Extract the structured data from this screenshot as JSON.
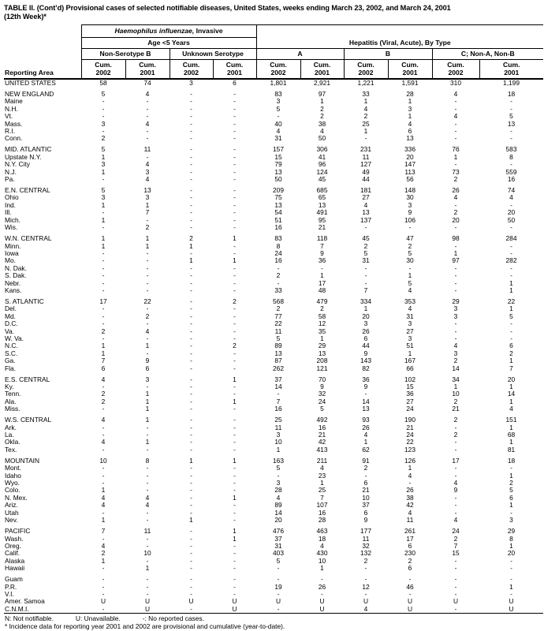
{
  "title": {
    "line1": "TABLE II. (Cont’d) Provisional cases of selected notifiable diseases, United States, weeks ending March 23, 2002, and March 24, 2001",
    "line2": "(12th Week)*"
  },
  "header": {
    "reporting_area": "Reporting Area",
    "group1_italic": "Haemophilus influenzae,",
    "group1_rest": " Invasive",
    "group1_sub": "Age <5 Years",
    "sub_nonserotype": "Non-Serotype B",
    "sub_unknown": "Unknown Serotype",
    "group2": "Hepatitis (Viral, Acute), By Type",
    "sub_a": "A",
    "sub_b": "B",
    "sub_c": "C; Non-A, Non-B",
    "cum_label": "Cum.",
    "years": [
      "2002",
      "2001",
      "2002",
      "2001",
      "2002",
      "2001",
      "2002",
      "2001",
      "2002",
      "2001"
    ]
  },
  "rows": [
    {
      "area": "UNITED STATES",
      "v": [
        "58",
        "74",
        "3",
        "6",
        "1,801",
        "2,921",
        "1,221",
        "1,591",
        "310",
        "1,199"
      ]
    },
    {
      "area": "NEW ENGLAND",
      "gap": true,
      "v": [
        "5",
        "4",
        "-",
        "-",
        "83",
        "97",
        "33",
        "28",
        "4",
        "18"
      ]
    },
    {
      "area": "Maine",
      "v": [
        "-",
        "-",
        "-",
        "-",
        "3",
        "1",
        "1",
        "1",
        "-",
        "-"
      ]
    },
    {
      "area": "N.H.",
      "v": [
        "-",
        "-",
        "-",
        "-",
        "5",
        "2",
        "4",
        "3",
        "-",
        "-"
      ]
    },
    {
      "area": "Vt.",
      "v": [
        "-",
        "-",
        "-",
        "-",
        "-",
        "2",
        "2",
        "1",
        "4",
        "5"
      ]
    },
    {
      "area": "Mass.",
      "v": [
        "3",
        "4",
        "-",
        "-",
        "40",
        "38",
        "25",
        "4",
        "-",
        "13"
      ]
    },
    {
      "area": "R.I.",
      "v": [
        "-",
        "-",
        "-",
        "-",
        "4",
        "4",
        "1",
        "6",
        "-",
        "-"
      ]
    },
    {
      "area": "Conn.",
      "v": [
        "2",
        "-",
        "-",
        "-",
        "31",
        "50",
        "-",
        "13",
        "-",
        "-"
      ]
    },
    {
      "area": "MID. ATLANTIC",
      "gap": true,
      "v": [
        "5",
        "11",
        "-",
        "-",
        "157",
        "306",
        "231",
        "336",
        "76",
        "583"
      ]
    },
    {
      "area": "Upstate N.Y.",
      "v": [
        "1",
        "-",
        "-",
        "-",
        "15",
        "41",
        "11",
        "20",
        "1",
        "8"
      ]
    },
    {
      "area": "N.Y. City",
      "v": [
        "3",
        "4",
        "-",
        "-",
        "79",
        "96",
        "127",
        "147",
        "-",
        "-"
      ]
    },
    {
      "area": "N.J.",
      "v": [
        "1",
        "3",
        "-",
        "-",
        "13",
        "124",
        "49",
        "113",
        "73",
        "559"
      ]
    },
    {
      "area": "Pa.",
      "v": [
        "-",
        "4",
        "-",
        "-",
        "50",
        "45",
        "44",
        "56",
        "2",
        "16"
      ]
    },
    {
      "area": "E.N. CENTRAL",
      "gap": true,
      "v": [
        "5",
        "13",
        "-",
        "-",
        "209",
        "685",
        "181",
        "148",
        "26",
        "74"
      ]
    },
    {
      "area": "Ohio",
      "v": [
        "3",
        "3",
        "-",
        "-",
        "75",
        "65",
        "27",
        "30",
        "4",
        "4"
      ]
    },
    {
      "area": "Ind.",
      "v": [
        "1",
        "1",
        "-",
        "-",
        "13",
        "13",
        "4",
        "3",
        "-",
        "-"
      ]
    },
    {
      "area": "Ill.",
      "v": [
        "-",
        "7",
        "-",
        "-",
        "54",
        "491",
        "13",
        "9",
        "2",
        "20"
      ]
    },
    {
      "area": "Mich.",
      "v": [
        "1",
        "-",
        "-",
        "-",
        "51",
        "95",
        "137",
        "106",
        "20",
        "50"
      ]
    },
    {
      "area": "Wis.",
      "v": [
        "-",
        "2",
        "-",
        "-",
        "16",
        "21",
        "-",
        "-",
        "-",
        "-"
      ]
    },
    {
      "area": "W.N. CENTRAL",
      "gap": true,
      "v": [
        "1",
        "1",
        "2",
        "1",
        "83",
        "118",
        "45",
        "47",
        "98",
        "284"
      ]
    },
    {
      "area": "Minn.",
      "v": [
        "1",
        "1",
        "1",
        "-",
        "8",
        "7",
        "2",
        "2",
        "-",
        "-"
      ]
    },
    {
      "area": "Iowa",
      "v": [
        "-",
        "-",
        "-",
        "-",
        "24",
        "9",
        "5",
        "5",
        "1",
        "-"
      ]
    },
    {
      "area": "Mo.",
      "v": [
        "-",
        "-",
        "1",
        "1",
        "16",
        "36",
        "31",
        "30",
        "97",
        "282"
      ]
    },
    {
      "area": "N. Dak.",
      "v": [
        "-",
        "-",
        "-",
        "-",
        "-",
        "-",
        "-",
        "-",
        "-",
        "-"
      ]
    },
    {
      "area": "S. Dak.",
      "v": [
        "-",
        "-",
        "-",
        "-",
        "2",
        "1",
        "-",
        "1",
        "-",
        "-"
      ]
    },
    {
      "area": "Nebr.",
      "v": [
        "-",
        "-",
        "-",
        "-",
        "-",
        "17",
        "-",
        "5",
        "-",
        "1"
      ]
    },
    {
      "area": "Kans.",
      "v": [
        "-",
        "-",
        "-",
        "-",
        "33",
        "48",
        "7",
        "4",
        "-",
        "1"
      ]
    },
    {
      "area": "S. ATLANTIC",
      "gap": true,
      "v": [
        "17",
        "22",
        "-",
        "2",
        "568",
        "479",
        "334",
        "353",
        "29",
        "22"
      ]
    },
    {
      "area": "Del.",
      "v": [
        "-",
        "-",
        "-",
        "-",
        "2",
        "2",
        "1",
        "4",
        "3",
        "1"
      ]
    },
    {
      "area": "Md.",
      "v": [
        "-",
        "2",
        "-",
        "-",
        "77",
        "58",
        "20",
        "31",
        "3",
        "5"
      ]
    },
    {
      "area": "D.C.",
      "v": [
        "-",
        "-",
        "-",
        "-",
        "22",
        "12",
        "3",
        "3",
        "-",
        "-"
      ]
    },
    {
      "area": "Va.",
      "v": [
        "2",
        "4",
        "-",
        "-",
        "11",
        "35",
        "26",
        "27",
        "-",
        "-"
      ]
    },
    {
      "area": "W. Va.",
      "v": [
        "-",
        "-",
        "-",
        "-",
        "5",
        "1",
        "6",
        "3",
        "-",
        "-"
      ]
    },
    {
      "area": "N.C.",
      "v": [
        "1",
        "1",
        "-",
        "2",
        "89",
        "29",
        "44",
        "51",
        "4",
        "6"
      ]
    },
    {
      "area": "S.C.",
      "v": [
        "1",
        "-",
        "-",
        "-",
        "13",
        "13",
        "9",
        "1",
        "3",
        "2"
      ]
    },
    {
      "area": "Ga.",
      "v": [
        "7",
        "9",
        "-",
        "-",
        "87",
        "208",
        "143",
        "167",
        "2",
        "1"
      ]
    },
    {
      "area": "Fla.",
      "v": [
        "6",
        "6",
        "-",
        "-",
        "262",
        "121",
        "82",
        "66",
        "14",
        "7"
      ]
    },
    {
      "area": "E.S. CENTRAL",
      "gap": true,
      "v": [
        "4",
        "3",
        "-",
        "1",
        "37",
        "70",
        "36",
        "102",
        "34",
        "20"
      ]
    },
    {
      "area": "Ky.",
      "v": [
        "-",
        "-",
        "-",
        "-",
        "14",
        "9",
        "9",
        "15",
        "1",
        "1"
      ]
    },
    {
      "area": "Tenn.",
      "v": [
        "2",
        "1",
        "-",
        "-",
        "-",
        "32",
        "-",
        "36",
        "10",
        "14"
      ]
    },
    {
      "area": "Ala.",
      "v": [
        "2",
        "1",
        "-",
        "1",
        "7",
        "24",
        "14",
        "27",
        "2",
        "1"
      ]
    },
    {
      "area": "Miss.",
      "v": [
        "-",
        "1",
        "-",
        "-",
        "16",
        "5",
        "13",
        "24",
        "21",
        "4"
      ]
    },
    {
      "area": "W.S. CENTRAL",
      "gap": true,
      "v": [
        "4",
        "1",
        "-",
        "-",
        "25",
        "492",
        "93",
        "190",
        "2",
        "151"
      ]
    },
    {
      "area": "Ark.",
      "v": [
        "-",
        "-",
        "-",
        "-",
        "11",
        "16",
        "26",
        "21",
        "-",
        "1"
      ]
    },
    {
      "area": "La.",
      "v": [
        "-",
        "-",
        "-",
        "-",
        "3",
        "21",
        "4",
        "24",
        "2",
        "68"
      ]
    },
    {
      "area": "Okla.",
      "v": [
        "4",
        "1",
        "-",
        "-",
        "10",
        "42",
        "1",
        "22",
        "-",
        "1"
      ]
    },
    {
      "area": "Tex.",
      "v": [
        "-",
        "-",
        "-",
        "-",
        "1",
        "413",
        "62",
        "123",
        "-",
        "81"
      ]
    },
    {
      "area": "MOUNTAIN",
      "gap": true,
      "v": [
        "10",
        "8",
        "1",
        "1",
        "163",
        "211",
        "91",
        "126",
        "17",
        "18"
      ]
    },
    {
      "area": "Mont.",
      "v": [
        "-",
        "-",
        "-",
        "-",
        "5",
        "4",
        "2",
        "1",
        "-",
        "-"
      ]
    },
    {
      "area": "Idaho",
      "v": [
        "-",
        "-",
        "-",
        "-",
        "-",
        "23",
        "-",
        "4",
        "-",
        "1"
      ]
    },
    {
      "area": "Wyo.",
      "v": [
        "-",
        "-",
        "-",
        "-",
        "3",
        "1",
        "6",
        "-",
        "4",
        "2"
      ]
    },
    {
      "area": "Colo.",
      "v": [
        "1",
        "-",
        "-",
        "-",
        "28",
        "25",
        "21",
        "26",
        "9",
        "5"
      ]
    },
    {
      "area": "N. Mex.",
      "v": [
        "4",
        "4",
        "-",
        "1",
        "4",
        "7",
        "10",
        "38",
        "-",
        "6"
      ]
    },
    {
      "area": "Ariz.",
      "v": [
        "4",
        "4",
        "-",
        "-",
        "89",
        "107",
        "37",
        "42",
        "-",
        "1"
      ]
    },
    {
      "area": "Utah",
      "v": [
        "-",
        "-",
        "-",
        "-",
        "14",
        "16",
        "6",
        "4",
        "-",
        "-"
      ]
    },
    {
      "area": "Nev.",
      "v": [
        "1",
        "-",
        "1",
        "-",
        "20",
        "28",
        "9",
        "11",
        "4",
        "3"
      ]
    },
    {
      "area": "PACIFIC",
      "gap": true,
      "v": [
        "7",
        "11",
        "-",
        "1",
        "476",
        "463",
        "177",
        "261",
        "24",
        "29"
      ]
    },
    {
      "area": "Wash.",
      "v": [
        "-",
        "-",
        "-",
        "1",
        "37",
        "18",
        "11",
        "17",
        "2",
        "8"
      ]
    },
    {
      "area": "Oreg.",
      "v": [
        "4",
        "-",
        "-",
        "-",
        "31",
        "4",
        "32",
        "6",
        "7",
        "1"
      ]
    },
    {
      "area": "Calif.",
      "v": [
        "2",
        "10",
        "-",
        "-",
        "403",
        "430",
        "132",
        "230",
        "15",
        "20"
      ]
    },
    {
      "area": "Alaska",
      "v": [
        "1",
        "-",
        "-",
        "-",
        "5",
        "10",
        "2",
        "2",
        "-",
        "-"
      ]
    },
    {
      "area": "Hawaii",
      "v": [
        "-",
        "1",
        "-",
        "-",
        "-",
        "1",
        "-",
        "6",
        "-",
        "-"
      ]
    },
    {
      "area": "Guam",
      "gap": true,
      "v": [
        "-",
        "-",
        "-",
        "-",
        "-",
        "-",
        "-",
        "-",
        "-",
        "-"
      ]
    },
    {
      "area": "P.R.",
      "v": [
        "-",
        "-",
        "-",
        "-",
        "19",
        "26",
        "12",
        "46",
        "-",
        "1"
      ]
    },
    {
      "area": "V.I.",
      "v": [
        "-",
        "-",
        "-",
        "-",
        "-",
        "-",
        "-",
        "-",
        "-",
        "-"
      ]
    },
    {
      "area": "Amer. Samoa",
      "v": [
        "U",
        "U",
        "U",
        "U",
        "U",
        "U",
        "U",
        "U",
        "U",
        "U"
      ]
    },
    {
      "area": "C.N.M.I.",
      "v": [
        "-",
        "U",
        "-",
        "U",
        "-",
        "U",
        "4",
        "U",
        "-",
        "U"
      ]
    }
  ],
  "footnotes": {
    "legend": [
      "N: Not notifiable.",
      "U: Unavailable.",
      "-: No reported cases."
    ],
    "incidence": "* Incidence data for reporting year 2001 and 2002 are provisional and cumulative (year-to-date)."
  }
}
